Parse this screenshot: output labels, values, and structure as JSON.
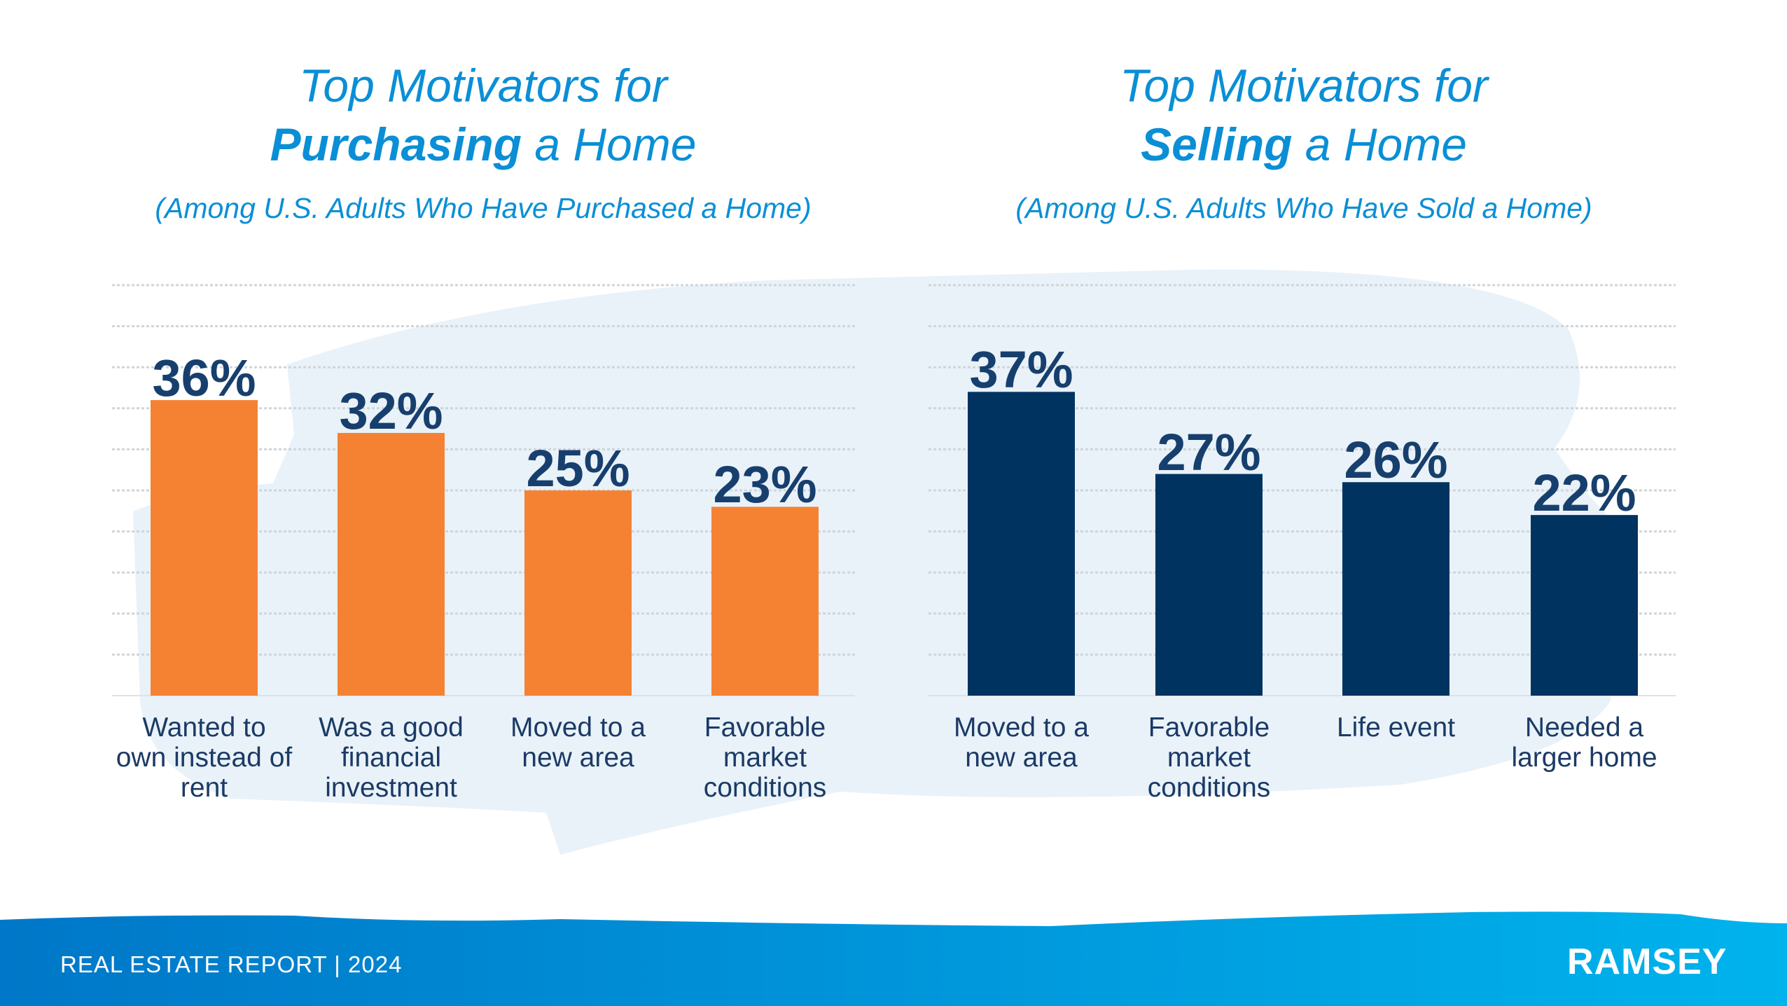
{
  "footer": {
    "report_label": "REAL ESTATE REPORT | 2024",
    "logo": "RAMSEY"
  },
  "colors": {
    "title": "#0a8fd6",
    "purchase_bars": "#f58233",
    "sell_bars": "#003360",
    "values": "#173f6e",
    "footer_start": "#0077c8",
    "footer_end": "#00b3ec"
  },
  "chart_data": [
    {
      "type": "bar",
      "title_line1": "Top Motivators for",
      "title_bold": "Purchasing",
      "title_rest": " a Home",
      "subtitle": "(Among U.S. Adults Who Have Purchased a Home)",
      "categories": [
        "Wanted to\nown instead of\nrent",
        "Was a good\nfinancial\ninvestment",
        "Moved to a\nnew area",
        "Favorable\nmarket\nconditions"
      ],
      "values": [
        36,
        32,
        25,
        23
      ],
      "value_labels": [
        "36%",
        "32%",
        "25%",
        "23%"
      ],
      "ylim": [
        0,
        50
      ],
      "grid": true,
      "grid_step": 5
    },
    {
      "type": "bar",
      "title_line1": "Top Motivators for",
      "title_bold": "Selling",
      "title_rest": " a Home",
      "subtitle": "(Among U.S. Adults Who Have Sold a Home)",
      "categories": [
        "Moved to a\nnew area",
        "Favorable\nmarket\nconditions",
        "Life event",
        "Needed a\nlarger home"
      ],
      "values": [
        37,
        27,
        26,
        22
      ],
      "value_labels": [
        "37%",
        "27%",
        "26%",
        "22%"
      ],
      "ylim": [
        0,
        50
      ],
      "grid": true,
      "grid_step": 5
    }
  ]
}
